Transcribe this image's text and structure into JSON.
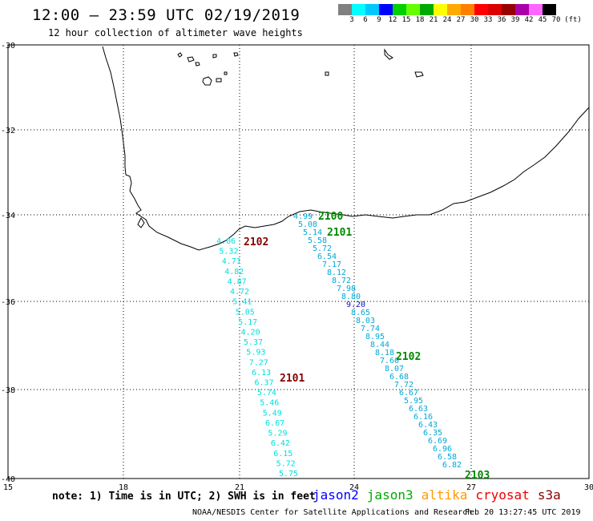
{
  "title": "12:00 – 23:59 UTC 02/19/2019",
  "subtitle": "12 hour collection of altimeter wave heights",
  "legend": {
    "colors": [
      "#808080",
      "#00ffff",
      "#00c8ff",
      "#0000ff",
      "#00d000",
      "#66ff00",
      "#00aa00",
      "#ffff00",
      "#ffaa00",
      "#ff8000",
      "#ff0000",
      "#dd0000",
      "#990000",
      "#aa00aa",
      "#ff66ff",
      "#000000"
    ],
    "labels": [
      "3",
      "6",
      "9",
      "12",
      "15",
      "18",
      "21",
      "24",
      "27",
      "30",
      "33",
      "36",
      "39",
      "42",
      "45",
      "70",
      "(ft)"
    ]
  },
  "axes": {
    "lat_labels": [
      "-30",
      "-32",
      "-34",
      "-36",
      "-38",
      "-40"
    ],
    "lon_labels": [
      "15",
      "18",
      "21",
      "24",
      "27",
      "30"
    ]
  },
  "tracks": [
    {
      "satellite": "cryosat",
      "color": "#00e0e0",
      "values": [
        "4.06",
        "5.32",
        "4.71",
        "4.82",
        "4.87",
        "4.72",
        "5.41",
        "5.05",
        "5.17",
        "4.20",
        "5.37",
        "5.93",
        "7.27",
        "6.13",
        "6.37",
        "5.74",
        "5.46",
        "5.49",
        "6.67",
        "5.29",
        "6.42",
        "6.15",
        "5.72",
        "5.75"
      ],
      "time_labels": [
        {
          "text": "2102",
          "color": "#880000"
        },
        {
          "text": "2101",
          "color": "#880000"
        }
      ]
    },
    {
      "satellite": "jason3",
      "color": "#00a8d8",
      "values": [
        "4.99",
        "5.08",
        "5.14",
        "5.58",
        "5.72",
        "6.54",
        "7.17",
        "8.12",
        "8.72",
        "7.98",
        "8.80",
        "9.20",
        "8.65",
        "8.03",
        "7.74",
        "8.95",
        "8.44",
        "8.18",
        "7.60",
        "8.07",
        "6.68",
        "7.72",
        "6.67",
        "5.95",
        "6.63",
        "6.16",
        "6.43",
        "6.35",
        "6.69",
        "6.96",
        "6.58",
        "6.82"
      ],
      "time_labels": [
        {
          "text": "2100",
          "color": "#008800"
        },
        {
          "text": "2101",
          "color": "#008800"
        },
        {
          "text": "2102",
          "color": "#008800"
        },
        {
          "text": "2103",
          "color": "#008800"
        }
      ]
    }
  ],
  "note": "note: 1) Time is in UTC; 2) SWH is in feet",
  "satellites": [
    {
      "name": "jason2",
      "color": "#0000ff"
    },
    {
      "name": "jason3",
      "color": "#00aa00"
    },
    {
      "name": "altika",
      "color": "#ff9900"
    },
    {
      "name": "cryosat",
      "color": "#ee0000"
    },
    {
      "name": "s3a",
      "color": "#880000"
    }
  ],
  "footer_left": "NOAA/NESDIS Center for Satellite Applications and Research",
  "footer_right": "Feb 20 13:27:45 UTC 2019"
}
